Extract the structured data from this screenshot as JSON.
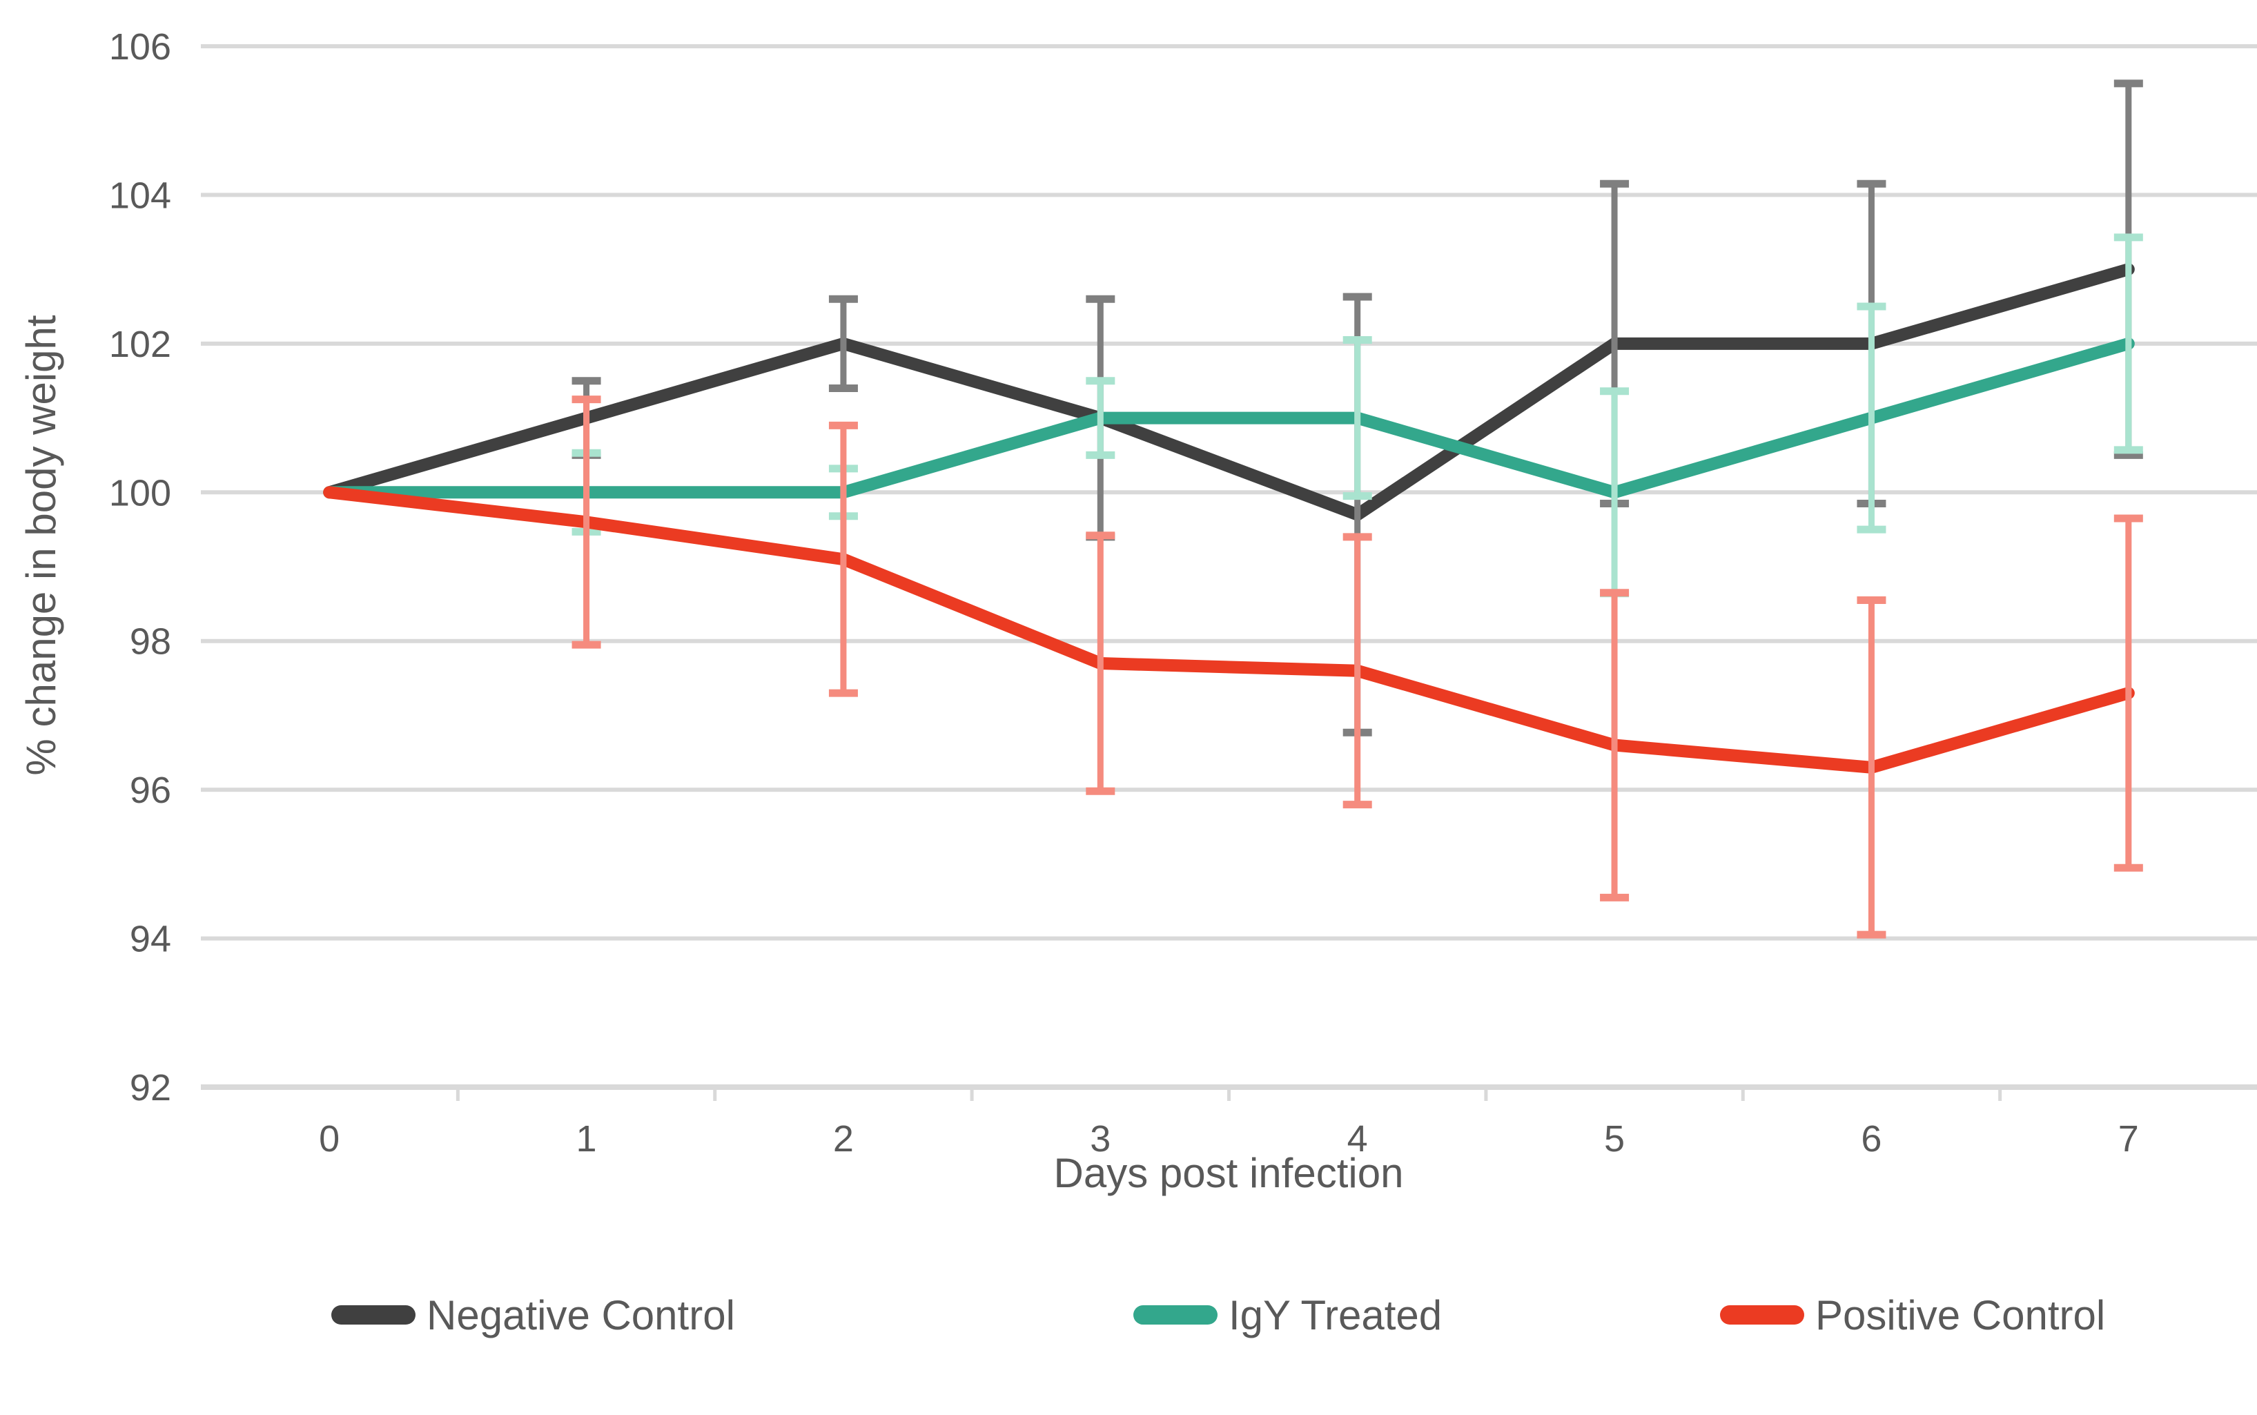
{
  "chart_data": {
    "type": "line",
    "title": "",
    "xlabel": "Days post infection",
    "ylabel": "% change in body weight",
    "categories": [
      0,
      1,
      2,
      3,
      4,
      5,
      6,
      7
    ],
    "ylim": [
      92,
      106
    ],
    "ytick_step": 2,
    "ytick_labels": [
      "92",
      "94",
      "96",
      "98",
      "100",
      "102",
      "104",
      "106"
    ],
    "grid": true,
    "legend_position": "bottom",
    "error_bars": true,
    "series": [
      {
        "name": "Negative Control",
        "color": "#404040",
        "error_color": "#7F7F7F",
        "values": [
          100,
          101,
          102,
          101,
          99.7,
          102,
          102,
          103
        ],
        "errors": [
          0,
          0.5,
          0.6,
          1.6,
          2.93,
          2.15,
          2.15,
          2.5
        ]
      },
      {
        "name": "IgY Treated",
        "color": "#33A78C",
        "error_color": "#A9E3CF",
        "values": [
          100,
          100,
          100,
          101,
          101,
          100,
          101,
          102
        ],
        "errors": [
          0,
          0.53,
          0.32,
          0.5,
          1.05,
          1.36,
          1.5,
          1.43
        ]
      },
      {
        "name": "Positive Control",
        "color": "#EB3B22",
        "error_color": "#F58B7E",
        "values": [
          100,
          99.6,
          99.1,
          97.7,
          97.6,
          96.6,
          96.3,
          97.3
        ],
        "errors": [
          0,
          1.65,
          1.8,
          1.72,
          1.8,
          2.05,
          2.25,
          2.35
        ]
      }
    ],
    "colors": {
      "gridline": "#D9D9D9",
      "axis_line": "#D9D9D9",
      "tick_mark": "#D9D9D9",
      "label_text": "#595959"
    }
  }
}
